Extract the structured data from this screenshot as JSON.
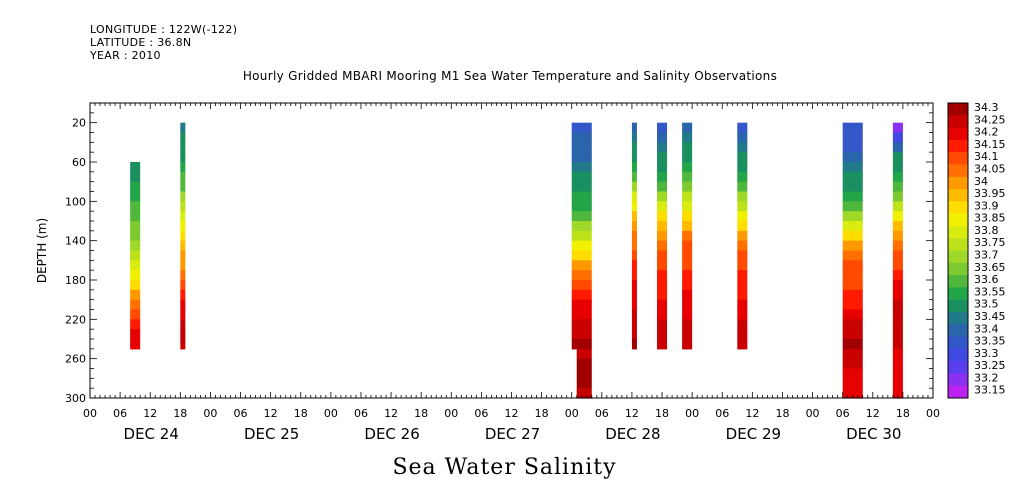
{
  "header": {
    "longitude": "LONGITUDE : 122W(-122)",
    "latitude": "LATITUDE : 36.8N",
    "year": "YEAR : 2010",
    "title": "Hourly Gridded MBARI Mooring M1 Sea Water Temperature and Salinity Observations"
  },
  "footer_title": "Sea Water Salinity",
  "chart_data": {
    "type": "heatmap",
    "title": "Hourly Gridded MBARI Mooring M1 Sea Water Temperature and Salinity Observations",
    "subtitle": "Sea Water Salinity",
    "ylabel": "DEPTH (m)",
    "xlabel": "",
    "xlim_hours": [
      0,
      168
    ],
    "ylim": [
      300,
      0
    ],
    "y_reversed": true,
    "y_ticks": [
      20,
      60,
      100,
      140,
      180,
      220,
      260,
      300
    ],
    "x_hour_ticks": [
      "00",
      "06",
      "12",
      "18"
    ],
    "x_day_labels": [
      "DEC 24",
      "DEC 25",
      "DEC 26",
      "DEC 27",
      "DEC 28",
      "DEC 29",
      "DEC 30"
    ],
    "colorbar": {
      "levels": [
        "34.3",
        "34.25",
        "34.2",
        "34.15",
        "34.1",
        "34.05",
        "34",
        "33.95",
        "33.9",
        "33.85",
        "33.8",
        "33.75",
        "33.7",
        "33.65",
        "33.6",
        "33.55",
        "33.5",
        "33.45",
        "33.4",
        "33.35",
        "33.3",
        "33.25",
        "33.2",
        "33.15"
      ],
      "colors": [
        "#a00000",
        "#c80000",
        "#e60000",
        "#ff1a00",
        "#ff4a00",
        "#ff7000",
        "#ff9900",
        "#ffbb00",
        "#ffdd00",
        "#f0f000",
        "#d8ec10",
        "#bde21a",
        "#a0d828",
        "#7cca30",
        "#4fb83c",
        "#22a548",
        "#1a9060",
        "#207a8a",
        "#2a64aa",
        "#3356c8",
        "#3f48e0",
        "#5a3ef0",
        "#8a30f0",
        "#bb22f0"
      ]
    },
    "columns": [
      {
        "label": "DEC 24 ~08-10h",
        "start_h": 8,
        "end_h": 10,
        "depth_top": 60,
        "depth_bottom": 250,
        "values": [
          33.51,
          33.52,
          33.54,
          33.56,
          33.58,
          33.6,
          33.63,
          33.66,
          33.7,
          33.75,
          33.8,
          33.86,
          33.92,
          33.98,
          34.04,
          34.09,
          34.14,
          34.19,
          34.22
        ]
      },
      {
        "label": "DEC 24 ~18h",
        "start_h": 18,
        "end_h": 19,
        "depth_top": 20,
        "depth_bottom": 250,
        "values": [
          33.46,
          33.48,
          33.5,
          33.52,
          33.54,
          33.58,
          33.62,
          33.68,
          33.74,
          33.8,
          33.86,
          33.9,
          33.94,
          33.98,
          34.02,
          34.07,
          34.12,
          34.16,
          34.2,
          34.22,
          34.24,
          34.26,
          34.27
        ]
      },
      {
        "label": "DEC 28 ~00-04h",
        "start_h": 96,
        "end_h": 100,
        "depth_top": 20,
        "depth_bottom": 250,
        "values": [
          33.36,
          33.38,
          33.4,
          33.42,
          33.45,
          33.48,
          33.51,
          33.54,
          33.57,
          33.62,
          33.68,
          33.76,
          33.84,
          33.92,
          33.98,
          34.04,
          34.09,
          34.14,
          34.18,
          34.22,
          34.25,
          34.27,
          34.29
        ]
      },
      {
        "label": "DEC 28 ~01-04h deep",
        "start_h": 97,
        "end_h": 100,
        "depth_top": 250,
        "depth_bottom": 300,
        "values": [
          34.26,
          34.29,
          34.3,
          34.28,
          34.24
        ]
      },
      {
        "label": "DEC 28 ~12h",
        "start_h": 108,
        "end_h": 109,
        "depth_top": 20,
        "depth_bottom": 250,
        "values": [
          33.4,
          33.44,
          33.48,
          33.52,
          33.56,
          33.62,
          33.7,
          33.78,
          33.86,
          33.94,
          34.0,
          34.04,
          34.07,
          34.1,
          34.13,
          34.15,
          34.18,
          34.2,
          34.22,
          34.24,
          34.26,
          34.27,
          34.28
        ]
      },
      {
        "label": "DEC 28 ~17-19h",
        "start_h": 113,
        "end_h": 115,
        "depth_top": 20,
        "depth_bottom": 250,
        "values": [
          33.37,
          33.4,
          33.44,
          33.48,
          33.52,
          33.56,
          33.62,
          33.7,
          33.78,
          33.88,
          33.96,
          34.02,
          34.06,
          34.09,
          34.11,
          34.13,
          34.15,
          34.17,
          34.19,
          34.21,
          34.23,
          34.24,
          34.25
        ]
      },
      {
        "label": "DEC 29 ~00-02h",
        "start_h": 118,
        "end_h": 120,
        "depth_top": 20,
        "depth_bottom": 250,
        "values": [
          33.4,
          33.44,
          33.48,
          33.52,
          33.56,
          33.6,
          33.66,
          33.74,
          33.82,
          33.9,
          33.97,
          34.03,
          34.08,
          34.1,
          34.12,
          34.14,
          34.16,
          34.18,
          34.2,
          34.22,
          34.23,
          34.24,
          34.25
        ]
      },
      {
        "label": "DEC 29 ~11-13h",
        "start_h": 129,
        "end_h": 131,
        "depth_top": 20,
        "depth_bottom": 250,
        "values": [
          33.37,
          33.4,
          33.44,
          33.48,
          33.52,
          33.56,
          33.62,
          33.68,
          33.76,
          33.84,
          33.92,
          34.0,
          34.06,
          34.09,
          34.11,
          34.13,
          34.15,
          34.17,
          34.19,
          34.21,
          34.23,
          34.25,
          34.27
        ]
      },
      {
        "label": "DEC 30 ~12-16h",
        "start_h": 150,
        "end_h": 154,
        "depth_top": 20,
        "depth_bottom": 300,
        "values": [
          33.34,
          33.35,
          33.37,
          33.4,
          33.44,
          33.48,
          33.52,
          33.56,
          33.62,
          33.7,
          33.8,
          33.92,
          34.02,
          34.07,
          34.09,
          34.1,
          34.12,
          34.14,
          34.16,
          34.2,
          34.24,
          34.27,
          34.28,
          34.27,
          34.25,
          34.22,
          34.2,
          34.19
        ]
      },
      {
        "label": "DEC 30 ~22-23h",
        "start_h": 160,
        "end_h": 162,
        "depth_top": 20,
        "depth_bottom": 300,
        "values": [
          33.18,
          33.3,
          33.42,
          33.48,
          33.52,
          33.56,
          33.6,
          33.66,
          33.74,
          33.84,
          33.94,
          34.02,
          34.06,
          34.09,
          34.12,
          34.15,
          34.18,
          34.21,
          34.24,
          34.26,
          34.27,
          34.25,
          34.23,
          34.22,
          34.21,
          34.2,
          34.2,
          34.2
        ]
      }
    ]
  }
}
